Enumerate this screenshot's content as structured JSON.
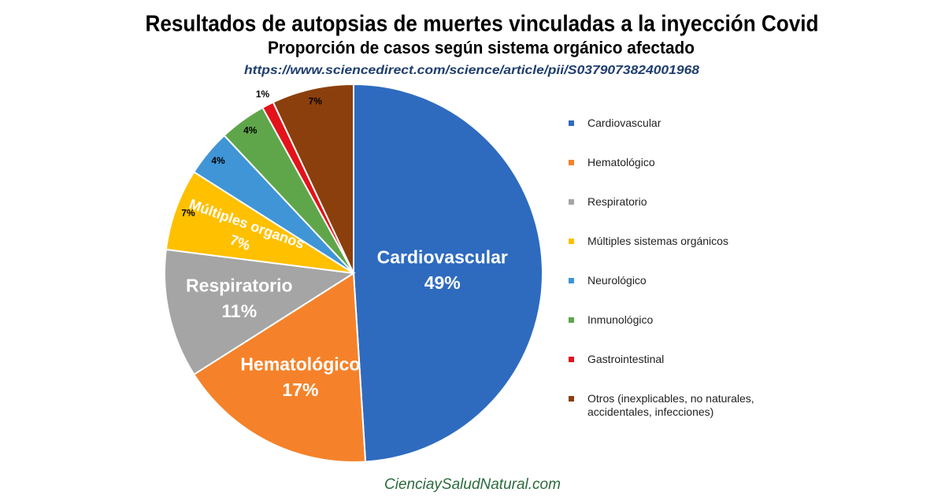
{
  "chart_data": {
    "type": "pie",
    "title": "Resultados de autopsias de muertes vinculadas a la inyección Covid",
    "subtitle": "Proporción de casos según sistema orgánico afectado",
    "source": "https://www.sciencedirect.com/science/article/pii/S0379073824001968",
    "footer": "CienciaySaludNatural.com",
    "categories": [
      "Cardiovascular",
      "Hematológico",
      "Respiratorio",
      "Múltiples sistemas orgánicos",
      "Neurológico",
      "Inmunológico",
      "Gastrointestinal",
      "Otros (inexplicables, no naturales, accidentales, infecciones)"
    ],
    "values": [
      49,
      17,
      11,
      7,
      4,
      4,
      1,
      7
    ],
    "value_labels": [
      "49%",
      "17%",
      "11%",
      "7%",
      "4%",
      "4%",
      "1%",
      "7%"
    ],
    "slice_labels": [
      "Cardiovascular",
      "Hematológico",
      "Respiratorio",
      "Múltiples organos",
      null,
      null,
      null,
      null
    ],
    "colors": [
      "#2e6bbf",
      "#f5822a",
      "#a5a5a5",
      "#ffc000",
      "#3f95d6",
      "#5fa64a",
      "#e3131b",
      "#8b3f0c"
    ]
  }
}
